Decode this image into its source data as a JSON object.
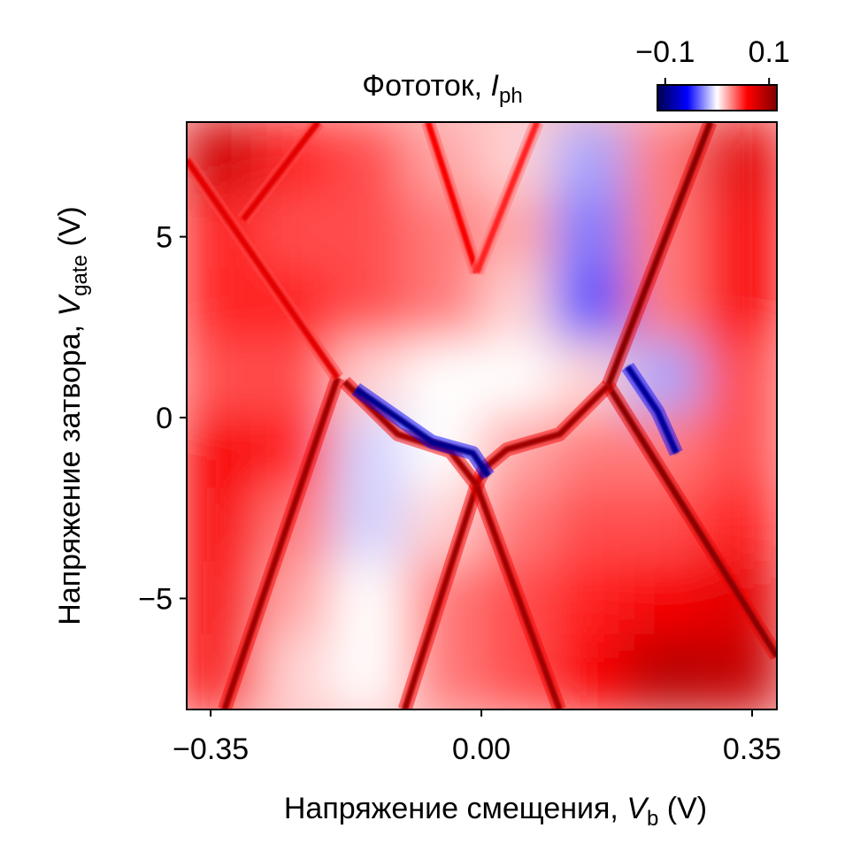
{
  "chart_data": {
    "type": "heatmap",
    "title": {
      "text": "Фототок, ",
      "var": "I",
      "sub": "ph"
    },
    "xlabel": {
      "text": "Напряжение смещения, ",
      "var": "V",
      "sub": "b",
      "unit": " (V)"
    },
    "ylabel": {
      "text": "Напряжение затвора, ",
      "var": "V",
      "sub": "gate",
      "unit": " (V)"
    },
    "xlim": [
      -0.381,
      0.382
    ],
    "ylim": [
      -8.07,
      8.17
    ],
    "xticks": [
      {
        "value": -0.35,
        "label": "−0.35"
      },
      {
        "value": 0.0,
        "label": "0.00"
      },
      {
        "value": 0.35,
        "label": "0.35"
      }
    ],
    "yticks": [
      {
        "value": 5,
        "label": "5"
      },
      {
        "value": 0,
        "label": "0"
      },
      {
        "value": -5,
        "label": "−5"
      }
    ],
    "colorbar": {
      "range": [
        -0.115,
        0.115
      ],
      "colormap": "seismic",
      "position": "top-right",
      "ticks": [
        {
          "value": -0.1,
          "label": "−0.1"
        },
        {
          "value": 0.1,
          "label": "0.1"
        }
      ]
    },
    "background_grid": {
      "x_centers": [
        -0.333,
        -0.238,
        -0.143,
        -0.048,
        0.048,
        0.143,
        0.238,
        0.334
      ],
      "y_centers": [
        7.15,
        5.12,
        3.09,
        1.06,
        -0.97,
        -3.0,
        -5.03,
        -7.06
      ],
      "values": [
        [
          0.08,
          0.05,
          0.04,
          0.02,
          0.01,
          -0.02,
          0.03,
          0.07
        ],
        [
          0.05,
          0.04,
          0.04,
          0.03,
          0.02,
          -0.03,
          0.03,
          0.06
        ],
        [
          0.05,
          0.05,
          0.04,
          0.03,
          0.01,
          -0.04,
          0.03,
          0.06
        ],
        [
          0.04,
          0.04,
          0.01,
          0.0,
          0.0,
          0.01,
          -0.02,
          0.04
        ],
        [
          0.06,
          0.05,
          -0.01,
          0.0,
          0.02,
          0.03,
          0.03,
          0.04
        ],
        [
          0.06,
          0.03,
          -0.01,
          0.01,
          0.03,
          0.04,
          0.04,
          0.05
        ],
        [
          0.06,
          0.02,
          0.0,
          0.03,
          0.04,
          0.05,
          0.06,
          0.07
        ],
        [
          0.06,
          0.01,
          0.0,
          0.03,
          0.04,
          0.06,
          0.09,
          0.085
        ]
      ]
    },
    "features": [
      {
        "name": "upper-right-resonance",
        "value": 0.11,
        "points": [
          [
            0.296,
            8.17
          ],
          [
            0.164,
            0.89
          ]
        ]
      },
      {
        "name": "lower-right-resonance",
        "value": 0.11,
        "points": [
          [
            0.164,
            0.89
          ],
          [
            0.382,
            -6.6
          ]
        ]
      },
      {
        "name": "inner-right-arc",
        "value": 0.1,
        "points": [
          [
            0.164,
            0.89
          ],
          [
            0.101,
            -0.46
          ],
          [
            0.033,
            -0.88
          ],
          [
            0.004,
            -1.4
          ],
          [
            -0.006,
            -1.87
          ]
        ]
      },
      {
        "name": "lower-left-branch",
        "value": 0.1,
        "points": [
          [
            -0.006,
            -1.87
          ],
          [
            -0.099,
            -8.07
          ]
        ]
      },
      {
        "name": "lower-right-branch",
        "value": 0.1,
        "points": [
          [
            -0.006,
            -1.87
          ],
          [
            0.101,
            -8.07
          ]
        ]
      },
      {
        "name": "inner-left-arc",
        "value": 0.1,
        "points": [
          [
            -0.177,
            0.99
          ],
          [
            -0.108,
            -0.46
          ],
          [
            -0.04,
            -0.93
          ],
          [
            -0.006,
            -1.87
          ]
        ]
      },
      {
        "name": "left-resonance",
        "value": 0.1,
        "points": [
          [
            -0.186,
            1.1
          ],
          [
            -0.332,
            -8.07
          ]
        ]
      },
      {
        "name": "upper-left-resonance",
        "value": 0.07,
        "points": [
          [
            -0.381,
            7.13
          ],
          [
            -0.186,
            1.1
          ]
        ]
      },
      {
        "name": "top-left-branch",
        "value": 0.06,
        "points": [
          [
            -0.069,
            8.17
          ],
          [
            -0.006,
            4.01
          ]
        ]
      },
      {
        "name": "top-right-branch",
        "value": 0.05,
        "points": [
          [
            0.072,
            8.17
          ],
          [
            -0.006,
            4.01
          ]
        ]
      },
      {
        "name": "far-left-line",
        "value": 0.07,
        "points": [
          [
            -0.211,
            8.17
          ],
          [
            -0.308,
            5.47
          ]
        ]
      },
      {
        "name": "blue-left-arc",
        "value": -0.095,
        "points": [
          [
            -0.162,
            0.79
          ],
          [
            -0.064,
            -0.67
          ],
          [
            -0.011,
            -0.98
          ],
          [
            0.009,
            -1.61
          ]
        ]
      },
      {
        "name": "blue-right-arc",
        "value": -0.09,
        "points": [
          [
            0.189,
            1.41
          ],
          [
            0.228,
            0.16
          ],
          [
            0.252,
            -0.98
          ]
        ]
      }
    ]
  }
}
